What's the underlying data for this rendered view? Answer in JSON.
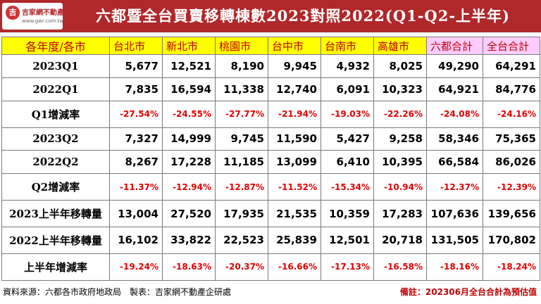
{
  "brand": {
    "logo_name": "吉家網不動產",
    "logo_url": "www.gwr.com.tw"
  },
  "title": "六都暨全台買賣移轉棟數2023對照2022(Q1-Q2-上半年)",
  "columns": [
    "各年度/各市",
    "台北市",
    "新北市",
    "桃園市",
    "台中市",
    "台南市",
    "高雄市",
    "六都合計",
    "全台合計"
  ],
  "rows": [
    {
      "label": "2023Q1",
      "values": [
        "5,677",
        "12,521",
        "8,190",
        "9,945",
        "4,932",
        "8,025",
        "49,290",
        "64,291"
      ]
    },
    {
      "label": "2022Q1",
      "values": [
        "7,835",
        "16,594",
        "11,338",
        "12,740",
        "6,091",
        "10,323",
        "64,921",
        "84,776"
      ]
    },
    {
      "label": "Q1增減率",
      "rate": true,
      "values": [
        "-27.54%",
        "-24.55%",
        "-27.77%",
        "-21.94%",
        "-19.03%",
        "-22.26%",
        "-24.08%",
        "-24.16%"
      ]
    },
    {
      "label": "2023Q2",
      "values": [
        "7,327",
        "14,999",
        "9,745",
        "11,590",
        "5,427",
        "9,258",
        "58,346",
        "75,365"
      ]
    },
    {
      "label": "2022Q2",
      "values": [
        "8,267",
        "17,228",
        "11,185",
        "13,099",
        "6,410",
        "10,395",
        "66,584",
        "86,026"
      ]
    },
    {
      "label": "Q2增減率",
      "rate": true,
      "values": [
        "-11.37%",
        "-12.94%",
        "-12.87%",
        "-11.52%",
        "-15.34%",
        "-10.94%",
        "-12.37%",
        "-12.39%"
      ]
    },
    {
      "label": "2023上半年移轉量",
      "values": [
        "13,004",
        "27,520",
        "17,935",
        "21,535",
        "10,359",
        "17,283",
        "107,636",
        "139,656"
      ]
    },
    {
      "label": "2022上半年移轉量",
      "values": [
        "16,102",
        "33,822",
        "22,523",
        "25,839",
        "12,501",
        "20,718",
        "131,505",
        "170,802"
      ]
    },
    {
      "label": "上半年增減率",
      "rate": true,
      "values": [
        "-19.24%",
        "-18.63%",
        "-20.37%",
        "-16.66%",
        "-17.13%",
        "-16.58%",
        "-18.16%",
        "-18.24%"
      ]
    }
  ],
  "footer": {
    "source": "資料來源：六都各市政府地政局　製表：吉家網不動產企研處",
    "note": "備註：202306月全台合計為預估值"
  },
  "colors": {
    "header_bg": "#b0282a",
    "col_header_bg": "#ffff00",
    "totals_header_bg": "#ffccff",
    "negative": "#e00000"
  }
}
